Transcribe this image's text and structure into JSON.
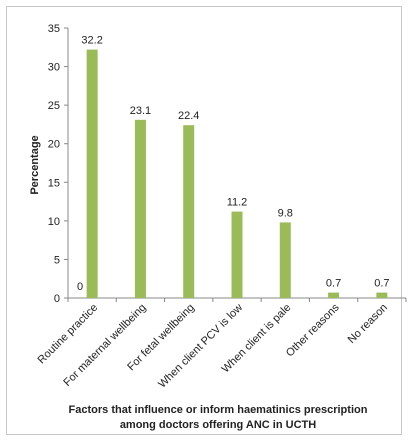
{
  "chart_data": {
    "type": "bar",
    "categories": [
      "Routine practice",
      "For maternal wellbeing",
      "For fetal wellbeing",
      "When client PCV is low",
      "When client is pale",
      "Other reasons",
      "No reason"
    ],
    "values": [
      32.2,
      23.1,
      22.4,
      11.2,
      9.8,
      0.7,
      0.7
    ],
    "value_labels": [
      "32.2",
      "23.1",
      "22.4",
      "11.2",
      "9.8",
      "0.7",
      "0.7"
    ],
    "zero_label": "0",
    "ylabel": "Percentage",
    "xlabel_line1": "Factors that influence or inform haematinics prescription",
    "xlabel_line2": "among doctors offering ANC in UCTH",
    "ylim": [
      0,
      35
    ],
    "yticks": [
      "0",
      "5",
      "10",
      "15",
      "20",
      "25",
      "30",
      "35"
    ],
    "grid": false,
    "bar_color": "#9bbb59"
  }
}
